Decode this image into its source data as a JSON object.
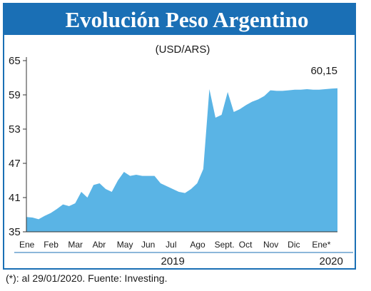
{
  "chart_data": {
    "type": "area",
    "title": "Evolución Peso Argentino",
    "subtitle": "(USD/ARS)",
    "categories": [
      "Ene",
      null,
      null,
      null,
      "Feb",
      null,
      null,
      null,
      "Mar",
      null,
      null,
      null,
      "Abr",
      null,
      null,
      null,
      "May",
      null,
      null,
      null,
      "Jun",
      null,
      null,
      null,
      "Jul",
      null,
      null,
      null,
      "Ago",
      null,
      null,
      null,
      "Sept.",
      null,
      null,
      null,
      "Oct",
      null,
      null,
      null,
      "Nov",
      null,
      null,
      null,
      "Dic",
      null,
      null,
      null,
      "Ene*",
      null,
      null,
      null
    ],
    "values": [
      37.6,
      37.5,
      37.2,
      37.8,
      38.3,
      39.0,
      39.8,
      39.5,
      40.0,
      42.0,
      41.0,
      43.2,
      43.5,
      42.5,
      42.0,
      44.0,
      45.5,
      44.8,
      45.0,
      44.8,
      44.8,
      44.8,
      43.5,
      43.0,
      42.5,
      42.0,
      41.8,
      42.5,
      43.5,
      46.0,
      60.0,
      55.0,
      55.5,
      59.5,
      56.0,
      56.5,
      57.2,
      57.8,
      58.2,
      58.8,
      59.8,
      59.7,
      59.7,
      59.8,
      59.9,
      59.9,
      60.0,
      59.9,
      59.9,
      60.0,
      60.1,
      60.15
    ],
    "value_labels": [
      null,
      null,
      null,
      null,
      null,
      null,
      null,
      null,
      null,
      null,
      null,
      null,
      null,
      null,
      null,
      null,
      null,
      null,
      null,
      null,
      null,
      null,
      null,
      null,
      null,
      null,
      null,
      null,
      null,
      null,
      null,
      null,
      null,
      null,
      null,
      null,
      null,
      null,
      null,
      null,
      null,
      null,
      null,
      null,
      null,
      null,
      null,
      null,
      null,
      null,
      null,
      "60,15"
    ],
    "years": [
      "2019",
      "2020"
    ],
    "color": "#5ab4e5",
    "ylim": [
      35,
      65
    ],
    "yticks": [
      35,
      41,
      47,
      53,
      59,
      65
    ],
    "footnote": "(*): al 29/01/2020. Fuente: Investing."
  }
}
